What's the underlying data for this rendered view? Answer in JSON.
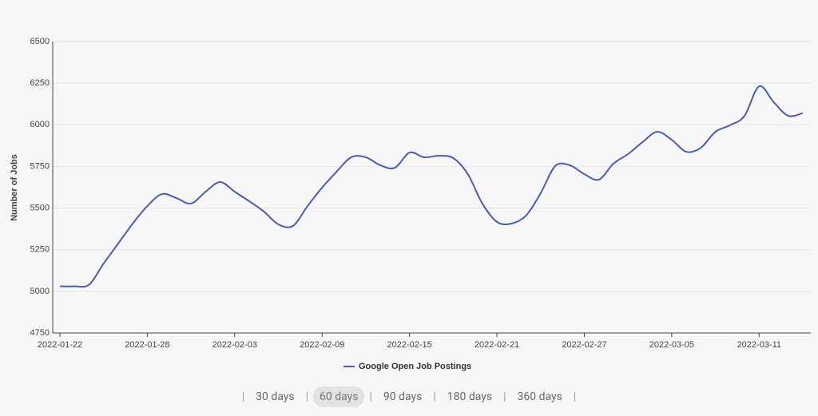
{
  "chart_data": {
    "type": "line",
    "y_label": "Number of Jobs",
    "x": [
      "2022-01-22",
      "2022-01-23",
      "2022-01-24",
      "2022-01-25",
      "2022-01-26",
      "2022-01-27",
      "2022-01-28",
      "2022-01-29",
      "2022-01-30",
      "2022-01-31",
      "2022-02-01",
      "2022-02-02",
      "2022-02-03",
      "2022-02-04",
      "2022-02-05",
      "2022-02-06",
      "2022-02-07",
      "2022-02-08",
      "2022-02-09",
      "2022-02-10",
      "2022-02-11",
      "2022-02-12",
      "2022-02-13",
      "2022-02-14",
      "2022-02-15",
      "2022-02-16",
      "2022-02-17",
      "2022-02-18",
      "2022-02-19",
      "2022-02-20",
      "2022-02-21",
      "2022-02-22",
      "2022-02-23",
      "2022-02-24",
      "2022-02-25",
      "2022-02-26",
      "2022-02-27",
      "2022-02-28",
      "2022-03-01",
      "2022-03-02",
      "2022-03-03",
      "2022-03-04",
      "2022-03-05",
      "2022-03-06",
      "2022-03-07",
      "2022-03-08",
      "2022-03-09",
      "2022-03-10",
      "2022-03-11",
      "2022-03-12",
      "2022-03-13",
      "2022-03-14"
    ],
    "series": [
      {
        "name": "Google Open Job Postings",
        "color": "#4a5bb5",
        "values": [
          5030,
          5030,
          5040,
          5167,
          5287,
          5407,
          5512,
          5584,
          5560,
          5527,
          5598,
          5656,
          5598,
          5541,
          5479,
          5402,
          5393,
          5512,
          5623,
          5719,
          5805,
          5805,
          5757,
          5742,
          5833,
          5805,
          5814,
          5800,
          5704,
          5527,
          5417,
          5407,
          5455,
          5589,
          5752,
          5757,
          5704,
          5671,
          5767,
          5824,
          5896,
          5958,
          5910,
          5838,
          5862,
          5958,
          5997,
          6054,
          6231,
          6136,
          6054,
          6070
        ]
      }
    ],
    "xlim": [
      "2022-01-22",
      "2022-03-14"
    ],
    "xticks": [
      "2022-01-22",
      "2022-01-28",
      "2022-02-03",
      "2022-02-09",
      "2022-02-15",
      "2022-02-21",
      "2022-02-27",
      "2022-03-05",
      "2022-03-11"
    ],
    "ylim": [
      4750,
      6500
    ],
    "yticks": [
      4750,
      5000,
      5250,
      5500,
      5750,
      6000,
      6250,
      6500
    ],
    "grid": true
  },
  "range_buttons": [
    "30 days",
    "60 days",
    "90 days",
    "180 days",
    "360 days"
  ],
  "selected_range": 1
}
